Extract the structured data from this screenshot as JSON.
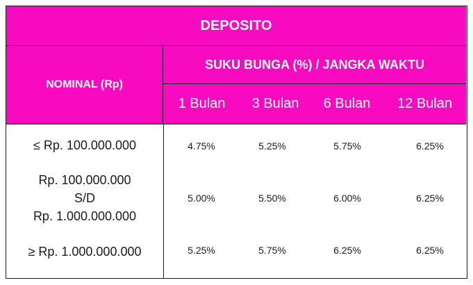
{
  "header": {
    "title": "DEPOSITO",
    "nominal_label": "NOMINAL (Rp)",
    "rate_label": "SUKU BUNGA (%) / JANGKA WAKTU",
    "periods": [
      "1 Bulan",
      "3 Bulan",
      "6 Bulan",
      "12 Bulan"
    ]
  },
  "rows": [
    {
      "nominal": [
        "≤ Rp. 100.000.000"
      ],
      "rates": [
        "4.75%",
        "5.25%",
        "5.75%",
        "6.25%"
      ]
    },
    {
      "nominal": [
        "Rp. 100.000.000",
        "S/D",
        "Rp. 1.000.000.000"
      ],
      "rates": [
        "5.00%",
        "5.50%",
        "6.00%",
        "6.25%"
      ]
    },
    {
      "nominal": [
        "≥ Rp. 1.000.000.000"
      ],
      "rates": [
        "5.25%",
        "5.75%",
        "6.25%",
        "6.25%"
      ]
    }
  ],
  "colors": {
    "header_bg": "#f70ac0",
    "header_text": "#ffffff",
    "border": "#1a1a1a"
  }
}
